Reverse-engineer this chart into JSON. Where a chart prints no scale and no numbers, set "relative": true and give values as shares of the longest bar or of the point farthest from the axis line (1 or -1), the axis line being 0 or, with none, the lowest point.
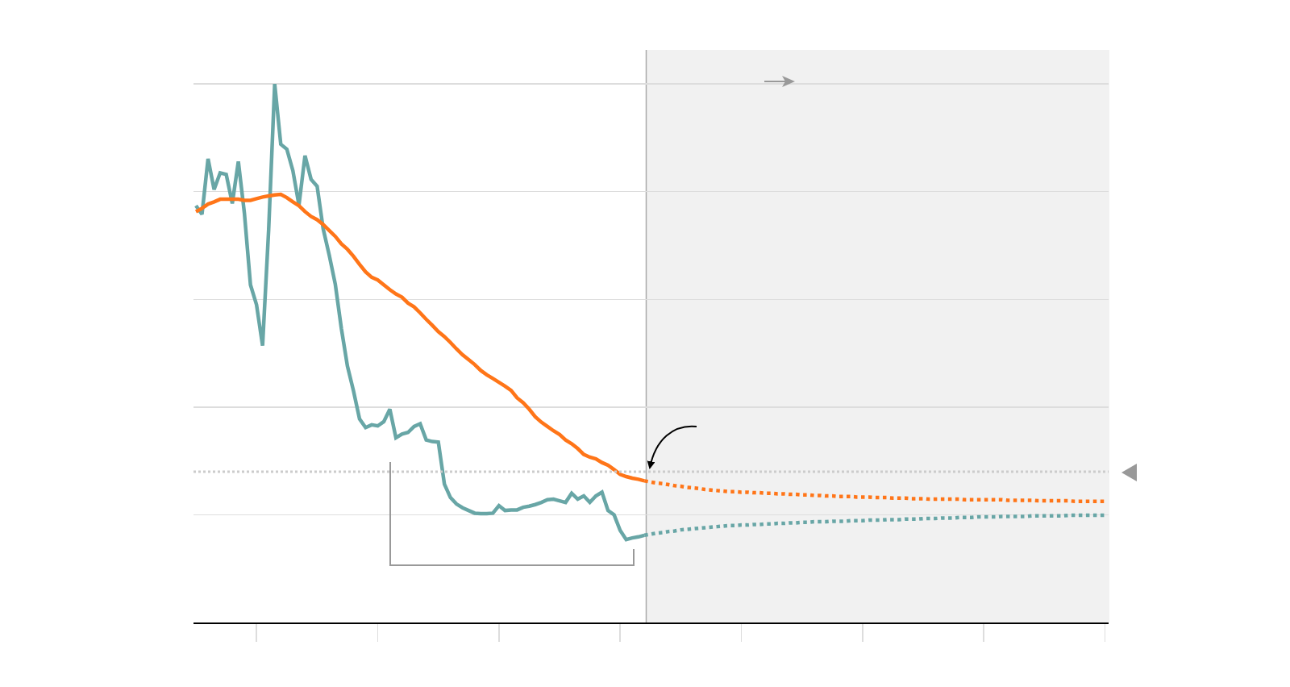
{
  "chart_data": {
    "type": "line",
    "relative": true,
    "grid": "y",
    "categories": [
      null,
      null,
      null,
      null,
      null,
      null,
      null,
      null,
      null,
      null,
      null,
      null,
      null,
      null,
      null,
      null,
      null,
      null,
      null,
      null,
      null,
      null,
      null,
      null,
      null,
      null,
      null,
      null,
      null,
      null,
      null,
      null,
      null,
      null,
      null,
      null,
      null,
      null,
      null,
      null,
      null,
      null,
      null,
      null,
      null,
      null,
      null,
      null,
      null,
      null,
      null,
      null,
      null,
      null,
      null,
      null,
      null,
      null,
      null,
      null,
      null,
      null,
      null,
      null,
      null,
      null,
      null,
      null,
      null,
      null,
      null,
      null,
      null,
      null,
      null,
      null,
      null,
      null,
      null,
      null,
      null,
      null,
      null,
      null,
      null,
      null,
      null,
      null,
      null,
      null,
      null,
      null,
      null,
      null,
      null,
      null,
      null,
      null,
      null,
      null,
      null,
      null,
      null,
      null,
      null,
      null,
      null,
      null,
      null,
      null,
      null,
      null,
      null,
      null,
      null,
      null,
      null,
      null,
      null,
      null,
      null,
      null,
      null,
      null,
      null,
      null,
      null,
      null,
      null,
      null,
      null,
      null,
      null,
      null,
      null,
      null,
      null,
      null,
      null,
      null,
      null,
      null,
      null,
      null,
      null,
      null,
      null,
      null,
      null,
      null,
      null
    ],
    "series": [
      {
        "color": "#68a6a6",
        "line_style": "solid",
        "values": [
          0.774,
          0.758,
          0.861,
          0.804,
          0.835,
          0.832,
          0.778,
          0.856,
          0.76,
          0.627,
          0.59,
          0.514,
          0.729,
          1,
          0.888,
          0.879,
          0.839,
          0.775,
          0.867,
          0.823,
          0.81,
          0.731,
          0.682,
          0.628,
          0.546,
          0.476,
          0.43,
          0.378,
          0.362,
          0.367,
          0.365,
          0.373,
          0.396,
          0.343,
          0.35,
          0.353,
          0.364,
          0.369,
          0.339,
          0.336,
          0.335,
          0.257,
          0.232,
          0.22,
          0.213,
          0.208,
          0.203,
          0.202,
          0.202,
          0.203,
          0.217,
          0.208,
          0.209,
          0.209,
          0.214,
          0.216,
          0.219,
          0.223,
          0.228,
          0.229,
          0.226,
          0.223,
          0.24,
          0.229,
          0.235,
          0.223,
          0.235,
          0.242,
          0.208,
          0.2,
          0.171,
          0.154,
          0.157,
          0.159,
          0.162,
          null,
          null,
          null,
          null,
          null,
          null,
          null,
          null,
          null,
          null,
          null,
          null,
          null,
          null,
          null,
          null,
          null,
          null,
          null,
          null,
          null,
          null,
          null,
          null,
          null,
          null,
          null,
          null,
          null,
          null,
          null,
          null,
          null,
          null,
          null,
          null,
          null,
          null,
          null,
          null,
          null,
          null,
          null,
          null,
          null,
          null,
          null,
          null,
          null,
          null,
          null,
          null,
          null,
          null,
          null,
          null,
          null,
          null,
          null,
          null,
          null,
          null,
          null,
          null,
          null,
          null,
          null,
          null,
          null,
          null,
          null,
          null,
          null,
          null,
          null,
          null
        ]
      },
      {
        "color": "#68a6a6",
        "line_style": "dotted",
        "values": [
          null,
          null,
          null,
          null,
          null,
          null,
          null,
          null,
          null,
          null,
          null,
          null,
          null,
          null,
          null,
          null,
          null,
          null,
          null,
          null,
          null,
          null,
          null,
          null,
          null,
          null,
          null,
          null,
          null,
          null,
          null,
          null,
          null,
          null,
          null,
          null,
          null,
          null,
          null,
          null,
          null,
          null,
          null,
          null,
          null,
          null,
          null,
          null,
          null,
          null,
          null,
          null,
          null,
          null,
          null,
          null,
          null,
          null,
          null,
          null,
          null,
          null,
          null,
          null,
          null,
          null,
          null,
          null,
          null,
          null,
          null,
          null,
          null,
          null,
          0.162,
          0.164,
          0.166,
          0.167,
          0.169,
          0.17,
          0.172,
          0.173,
          0.174,
          0.175,
          0.176,
          0.177,
          0.178,
          0.179,
          0.18,
          0.18,
          0.181,
          0.181,
          0.182,
          0.182,
          0.183,
          0.183,
          0.184,
          0.184,
          0.185,
          0.185,
          0.186,
          0.186,
          0.187,
          0.187,
          0.187,
          0.188,
          0.188,
          0.188,
          0.189,
          0.189,
          0.189,
          0.19,
          0.19,
          0.19,
          0.191,
          0.191,
          0.191,
          0.192,
          0.192,
          0.192,
          0.193,
          0.193,
          0.193,
          0.194,
          0.194,
          0.194,
          0.195,
          0.195,
          0.195,
          0.196,
          0.196,
          0.196,
          0.196,
          0.197,
          0.197,
          0.197,
          0.197,
          0.197,
          0.198,
          0.198,
          0.198,
          0.198,
          0.198,
          0.198,
          0.199,
          0.199,
          0.199,
          0.199,
          0.199,
          0.199,
          0.199
        ]
      },
      {
        "color": "#ff7518",
        "line_style": "solid",
        "values": [
          0.763,
          0.769,
          0.777,
          0.781,
          0.786,
          0.786,
          0.786,
          0.786,
          0.784,
          0.784,
          0.787,
          0.79,
          0.792,
          0.794,
          0.795,
          0.789,
          0.781,
          0.774,
          0.763,
          0.754,
          0.748,
          0.739,
          0.728,
          0.717,
          0.703,
          0.693,
          0.68,
          0.665,
          0.651,
          0.641,
          0.636,
          0.627,
          0.618,
          0.61,
          0.604,
          0.593,
          0.586,
          0.575,
          0.563,
          0.552,
          0.54,
          0.531,
          0.52,
          0.508,
          0.497,
          0.488,
          0.479,
          0.468,
          0.46,
          0.453,
          0.446,
          0.439,
          0.431,
          0.417,
          0.408,
          0.396,
          0.382,
          0.372,
          0.364,
          0.356,
          0.349,
          0.339,
          0.332,
          0.323,
          0.312,
          0.307,
          0.304,
          0.297,
          0.292,
          0.284,
          0.275,
          0.271,
          0.268,
          0.266,
          0.263,
          null,
          null,
          null,
          null,
          null,
          null,
          null,
          null,
          null,
          null,
          null,
          null,
          null,
          null,
          null,
          null,
          null,
          null,
          null,
          null,
          null,
          null,
          null,
          null,
          null,
          null,
          null,
          null,
          null,
          null,
          null,
          null,
          null,
          null,
          null,
          null,
          null,
          null,
          null,
          null,
          null,
          null,
          null,
          null,
          null,
          null,
          null,
          null,
          null,
          null,
          null,
          null,
          null,
          null,
          null,
          null,
          null,
          null,
          null,
          null,
          null,
          null,
          null,
          null,
          null,
          null,
          null,
          null,
          null,
          null,
          null,
          null,
          null,
          null,
          null,
          null
        ]
      },
      {
        "color": "#ff7518",
        "line_style": "dotted",
        "values": [
          null,
          null,
          null,
          null,
          null,
          null,
          null,
          null,
          null,
          null,
          null,
          null,
          null,
          null,
          null,
          null,
          null,
          null,
          null,
          null,
          null,
          null,
          null,
          null,
          null,
          null,
          null,
          null,
          null,
          null,
          null,
          null,
          null,
          null,
          null,
          null,
          null,
          null,
          null,
          null,
          null,
          null,
          null,
          null,
          null,
          null,
          null,
          null,
          null,
          null,
          null,
          null,
          null,
          null,
          null,
          null,
          null,
          null,
          null,
          null,
          null,
          null,
          null,
          null,
          null,
          null,
          null,
          null,
          null,
          null,
          null,
          null,
          null,
          null,
          0.263,
          0.261,
          0.259,
          0.258,
          0.256,
          0.254,
          0.253,
          0.251,
          0.25,
          0.249,
          0.247,
          0.246,
          0.245,
          0.244,
          0.243,
          0.243,
          0.242,
          0.242,
          0.241,
          0.241,
          0.24,
          0.24,
          0.239,
          0.239,
          0.238,
          0.238,
          0.237,
          0.237,
          0.236,
          0.236,
          0.235,
          0.235,
          0.234,
          0.234,
          0.234,
          0.233,
          0.233,
          0.233,
          0.232,
          0.232,
          0.232,
          0.231,
          0.231,
          0.231,
          0.23,
          0.23,
          0.23,
          0.229,
          0.229,
          0.229,
          0.229,
          0.229,
          0.229,
          0.228,
          0.228,
          0.228,
          0.228,
          0.228,
          0.228,
          0.228,
          0.227,
          0.227,
          0.227,
          0.227,
          0.227,
          0.226,
          0.226,
          0.226,
          0.226,
          0.226,
          0.226,
          0.225,
          0.225,
          0.225,
          0.225,
          0.225,
          0.225
        ]
      }
    ],
    "ref_lines": [
      {
        "axis": "y",
        "value": 0.28,
        "color": "#cccccc",
        "line_style": "dotted"
      }
    ]
  }
}
